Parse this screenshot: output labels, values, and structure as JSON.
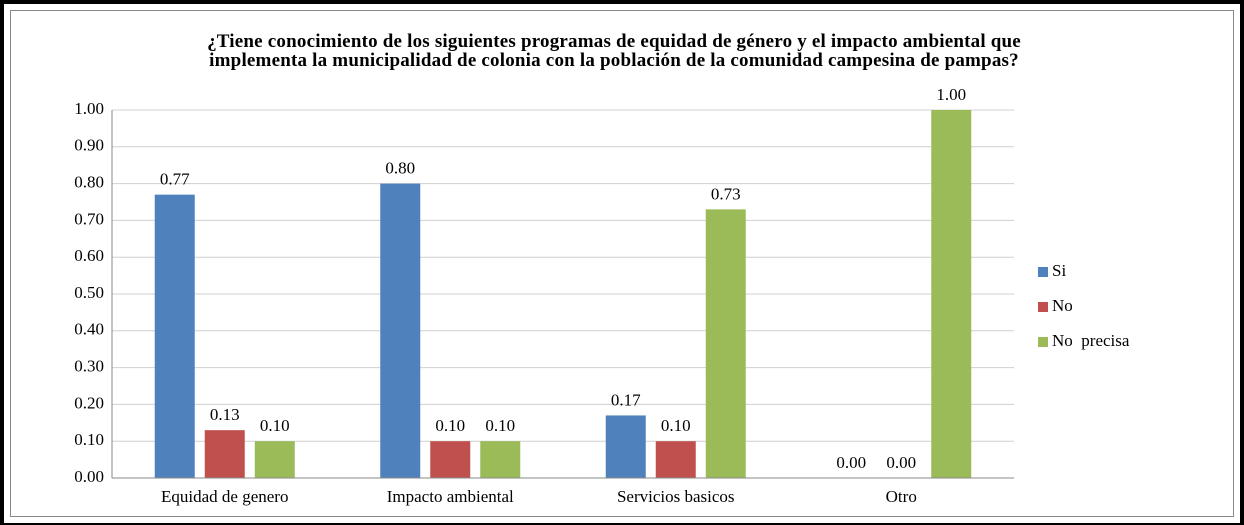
{
  "chart_data": {
    "type": "bar",
    "title": "¿Tiene conocimiento de los siguientes programas de equidad de género y el impacto ambiental que implementa la municipalidad de colonia con la población de la comunidad campesina de pampas?",
    "categories": [
      "Equidad de genero",
      "Impacto ambiental",
      "Servicios basicos",
      "Otro"
    ],
    "series": [
      {
        "name": "Si",
        "color": "#4f81bd",
        "values": [
          0.77,
          0.8,
          0.17,
          0
        ],
        "value_labels": [
          "0.77",
          "0.80",
          "0.17",
          "0.00"
        ]
      },
      {
        "name": "No",
        "color": "#c0504d",
        "values": [
          0.13,
          0.1,
          0.1,
          0
        ],
        "value_labels": [
          "0.13",
          "0.10",
          "0.10",
          "0.00"
        ]
      },
      {
        "name": "No  precisa",
        "color": "#9bbb59",
        "values": [
          0.1,
          0.1,
          0.73,
          1
        ],
        "value_labels": [
          "0.10",
          "0.10",
          "0.73",
          "1.00"
        ]
      }
    ],
    "ylim": [
      0,
      1
    ],
    "yticks": [
      {
        "value": 0,
        "label": "0.00"
      },
      {
        "value": 0.1,
        "label": "0.10"
      },
      {
        "value": 0.2,
        "label": "0.20"
      },
      {
        "value": 0.3,
        "label": "0.30"
      },
      {
        "value": 0.4,
        "label": "0.40"
      },
      {
        "value": 0.5,
        "label": "0.50"
      },
      {
        "value": 0.6,
        "label": "0.60"
      },
      {
        "value": 0.7,
        "label": "0.70"
      },
      {
        "value": 0.8,
        "label": "0.80"
      },
      {
        "value": 0.9,
        "label": "0.90"
      },
      {
        "value": 1,
        "label": "1.00"
      }
    ],
    "grid": true,
    "legend": "right"
  }
}
